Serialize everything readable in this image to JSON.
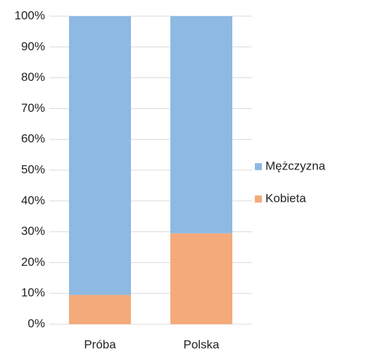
{
  "chart_data": {
    "type": "stacked_bar",
    "categories": [
      "Próba",
      "Polska"
    ],
    "series": [
      {
        "name": "Mężczyzna",
        "color": "#8db9e2",
        "values": [
          90.5,
          70.5
        ]
      },
      {
        "name": "Kobieta",
        "color": "#f4aa7b",
        "values": [
          9.5,
          29.5
        ]
      }
    ],
    "ylim": [
      0,
      100
    ],
    "yticks": [
      {
        "value": 0,
        "label": "0%"
      },
      {
        "value": 10,
        "label": "10%"
      },
      {
        "value": 20,
        "label": "20%"
      },
      {
        "value": 30,
        "label": "30%"
      },
      {
        "value": 40,
        "label": "40%"
      },
      {
        "value": 50,
        "label": "50%"
      },
      {
        "value": 60,
        "label": "60%"
      },
      {
        "value": 70,
        "label": "70%"
      },
      {
        "value": 80,
        "label": "80%"
      },
      {
        "value": 90,
        "label": "90%"
      },
      {
        "value": 100,
        "label": "100%"
      }
    ],
    "grid": true,
    "legend": "right"
  }
}
